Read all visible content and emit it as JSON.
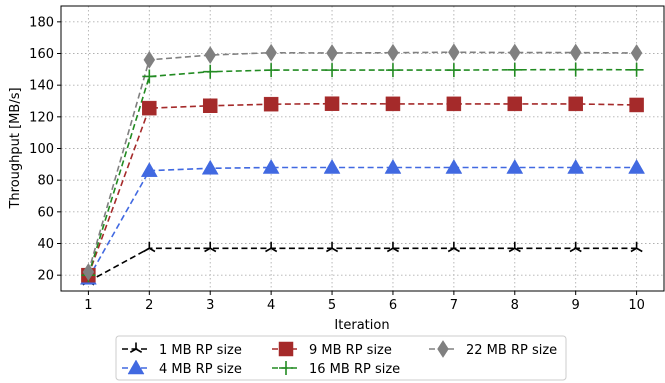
{
  "chart_data": {
    "type": "line",
    "xlabel": "Iteration",
    "ylabel": "Throughput [MB/s]",
    "x": [
      1,
      2,
      3,
      4,
      5,
      6,
      7,
      8,
      9,
      10
    ],
    "xlim": [
      0.55,
      10.45
    ],
    "ylim": [
      10,
      190
    ],
    "xticks": [
      1,
      2,
      3,
      4,
      5,
      6,
      7,
      8,
      9,
      10
    ],
    "yticks": [
      20,
      40,
      60,
      80,
      100,
      120,
      140,
      160,
      180
    ],
    "grid": true,
    "legend_position": "bottom",
    "series": [
      {
        "name": "1 MB RP size",
        "color": "#000000",
        "marker": "tri_down",
        "values": [
          16,
          37,
          37,
          37,
          37,
          37,
          37,
          37,
          37,
          37
        ]
      },
      {
        "name": "4 MB RP size",
        "color": "#4169e1",
        "marker": "triangle",
        "values": [
          18,
          86,
          87.5,
          88,
          88,
          88,
          88,
          88,
          88,
          88
        ]
      },
      {
        "name": "9 MB RP size",
        "color": "#a52a2a",
        "marker": "square",
        "values": [
          20,
          125.5,
          127,
          128,
          128.3,
          128.2,
          128.2,
          128.2,
          128.2,
          127.5
        ]
      },
      {
        "name": "16 MB RP size",
        "color": "#228b22",
        "marker": "plus",
        "values": [
          20,
          145.5,
          148.5,
          149.5,
          149.5,
          149.5,
          149.5,
          149.7,
          149.8,
          149.7
        ]
      },
      {
        "name": "22 MB RP size",
        "color": "#808080",
        "marker": "diamond",
        "values": [
          22,
          156,
          159,
          160.5,
          160.3,
          160.5,
          160.8,
          160.6,
          160.6,
          160.3
        ]
      }
    ]
  }
}
